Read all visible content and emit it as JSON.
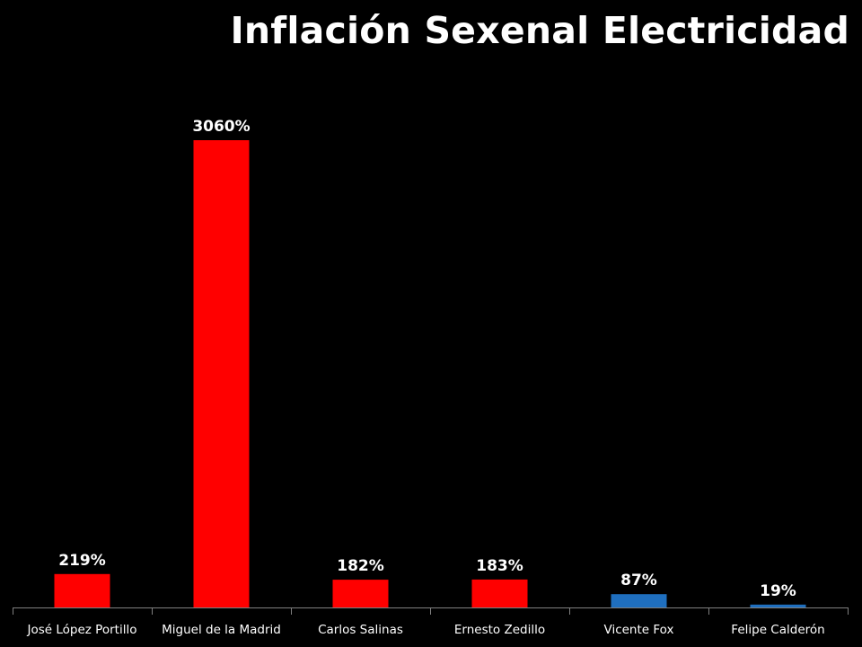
{
  "chart_data": {
    "type": "bar",
    "title": "Inflación Sexenal Electricidad",
    "xlabel": "",
    "ylabel": "",
    "categories": [
      "José López Portillo",
      "Miguel de la Madrid",
      "Carlos Salinas",
      "Ernesto Zedillo",
      "Vicente Fox",
      "Felipe Calderón"
    ],
    "values": [
      219,
      3060,
      182,
      183,
      87,
      19
    ],
    "data_labels": [
      "219%",
      "3060%",
      "182%",
      "183%",
      "87%",
      "19%"
    ],
    "bar_colors": [
      "#ff0000",
      "#ff0000",
      "#ff0000",
      "#ff0000",
      "#1f6fbf",
      "#1f6fbf"
    ],
    "ylim": [
      0,
      3060
    ],
    "grid": false,
    "legend": "none"
  },
  "colors": {
    "background": "#000000",
    "text": "#ffffff",
    "axis": "#7f7f7f"
  }
}
